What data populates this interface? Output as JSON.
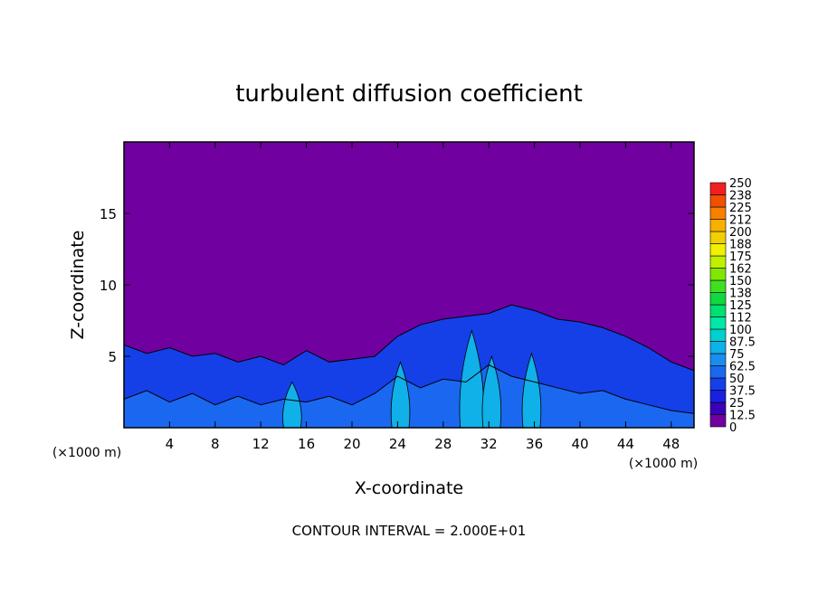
{
  "chart_data": {
    "type": "heatmap",
    "title": "turbulent diffusion coefficient",
    "xlabel": "X-coordinate",
    "ylabel": "Z-coordinate",
    "x_unit": "(×1000 m)",
    "y_unit": "(×1000 m)",
    "footer": "CONTOUR INTERVAL = 2.000E+01",
    "xlim": [
      0,
      50
    ],
    "ylim": [
      0,
      20
    ],
    "x_ticks": [
      4,
      8,
      12,
      16,
      20,
      24,
      28,
      32,
      36,
      40,
      44,
      48
    ],
    "y_ticks": [
      5,
      10,
      15
    ],
    "colorbar": {
      "labels": [
        "0",
        "12.5",
        "25",
        "37.5",
        "50",
        "62.5",
        "75",
        "87.5",
        "100",
        "112",
        "125",
        "138",
        "150",
        "162",
        "175",
        "188",
        "200",
        "212",
        "225",
        "238",
        "250"
      ],
      "colors": [
        "#7000a0",
        "#3a00b8",
        "#1a20e0",
        "#1540e8",
        "#1a68f0",
        "#1a8ef0",
        "#10b0e8",
        "#00d0d0",
        "#00e8a8",
        "#00e070",
        "#10d840",
        "#40e020",
        "#80e800",
        "#c0f000",
        "#f0f000",
        "#f0d000",
        "#f8b000",
        "#f88000",
        "#f05000",
        "#f02020",
        "#f08080"
      ]
    },
    "boundary_layer_top": [
      [
        0,
        5.8
      ],
      [
        2,
        5.2
      ],
      [
        4,
        5.6
      ],
      [
        6,
        5.0
      ],
      [
        8,
        5.2
      ],
      [
        10,
        4.6
      ],
      [
        12,
        5.0
      ],
      [
        14,
        4.4
      ],
      [
        16,
        5.4
      ],
      [
        18,
        4.6
      ],
      [
        20,
        4.8
      ],
      [
        22,
        5.0
      ],
      [
        24,
        6.4
      ],
      [
        26,
        7.2
      ],
      [
        28,
        7.6
      ],
      [
        30,
        7.8
      ],
      [
        32,
        8.0
      ],
      [
        34,
        8.6
      ],
      [
        36,
        8.2
      ],
      [
        38,
        7.6
      ],
      [
        40,
        7.4
      ],
      [
        42,
        7.0
      ],
      [
        44,
        6.4
      ],
      [
        46,
        5.6
      ],
      [
        48,
        4.6
      ],
      [
        50,
        4.0
      ]
    ],
    "near_surface_layer_top": [
      [
        0,
        2.0
      ],
      [
        2,
        2.6
      ],
      [
        4,
        1.8
      ],
      [
        6,
        2.4
      ],
      [
        8,
        1.6
      ],
      [
        10,
        2.2
      ],
      [
        12,
        1.6
      ],
      [
        14,
        2.0
      ],
      [
        16,
        1.8
      ],
      [
        18,
        2.2
      ],
      [
        20,
        1.6
      ],
      [
        22,
        2.4
      ],
      [
        24,
        3.6
      ],
      [
        26,
        2.8
      ],
      [
        28,
        3.4
      ],
      [
        30,
        3.2
      ],
      [
        32,
        4.4
      ],
      [
        34,
        3.6
      ],
      [
        36,
        3.2
      ],
      [
        38,
        2.8
      ],
      [
        40,
        2.4
      ],
      [
        42,
        2.6
      ],
      [
        44,
        2.0
      ],
      [
        46,
        1.6
      ],
      [
        48,
        1.2
      ],
      [
        50,
        1.0
      ]
    ],
    "plumes": [
      {
        "x": [
          29.5,
          31.5
        ],
        "zTop": 6.8
      },
      {
        "x": [
          31.5,
          33
        ],
        "zTop": 5.0
      },
      {
        "x": [
          23.5,
          25
        ],
        "zTop": 4.6
      },
      {
        "x": [
          35,
          36.5
        ],
        "zTop": 5.2
      },
      {
        "x": [
          14,
          15.5
        ],
        "zTop": 3.2
      }
    ]
  }
}
